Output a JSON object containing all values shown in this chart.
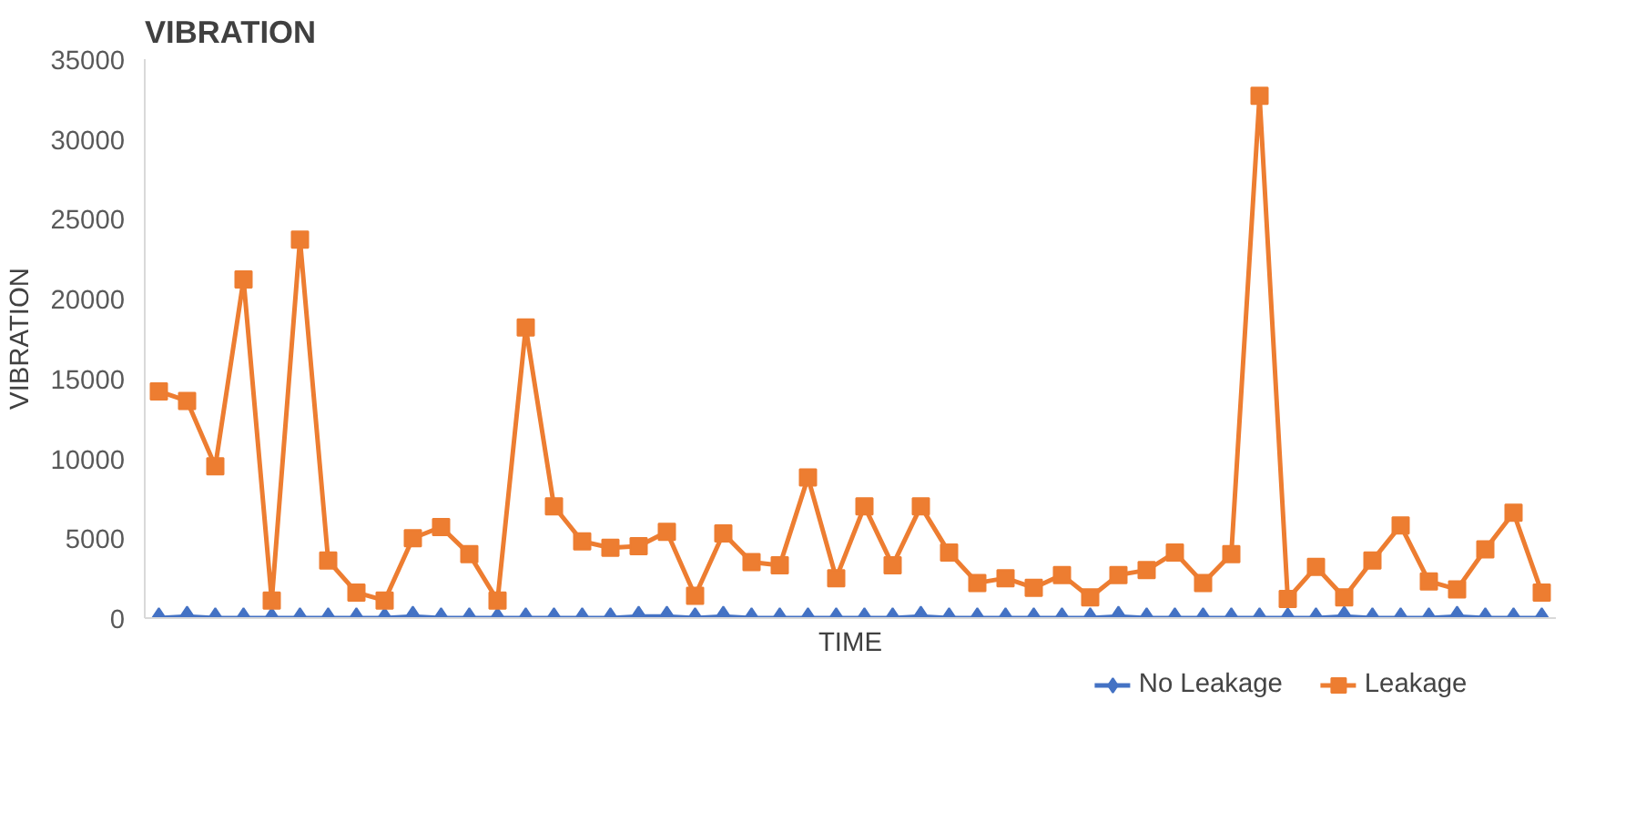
{
  "chart_data": {
    "type": "line",
    "title": "VIBRATION",
    "xlabel": "TIME",
    "ylabel": "VIBRATION",
    "categories": [
      null,
      null,
      null,
      null,
      null,
      null,
      null,
      null,
      null,
      null,
      null,
      null,
      null,
      null,
      null,
      null,
      null,
      null,
      null,
      null,
      null,
      null,
      null,
      null,
      null,
      null,
      null,
      null,
      null,
      null,
      null,
      null,
      null,
      null,
      null,
      null,
      null,
      null,
      null,
      null,
      null,
      null,
      null,
      null,
      null,
      null,
      null,
      null,
      null,
      null
    ],
    "series": [
      {
        "name": "No Leakage",
        "color": "#4472c4",
        "marker": "diamond",
        "values": [
          0,
          100,
          0,
          0,
          0,
          0,
          0,
          0,
          0,
          100,
          0,
          0,
          0,
          0,
          0,
          0,
          0,
          100,
          100,
          0,
          100,
          0,
          0,
          0,
          0,
          0,
          0,
          100,
          0,
          0,
          0,
          0,
          0,
          0,
          100,
          0,
          0,
          0,
          0,
          0,
          0,
          0,
          100,
          0,
          0,
          0,
          100,
          0,
          0,
          0
        ]
      },
      {
        "name": "Leakage",
        "color": "#ed7d31",
        "marker": "square",
        "values": [
          14200,
          13600,
          9500,
          21200,
          1100,
          23700,
          3600,
          1600,
          1100,
          5000,
          5700,
          4000,
          1100,
          18200,
          7000,
          4800,
          4400,
          4500,
          5400,
          1400,
          5300,
          3500,
          3300,
          8800,
          2500,
          7000,
          3300,
          7000,
          4100,
          2200,
          2500,
          1900,
          2700,
          1300,
          2700,
          3000,
          4100,
          2200,
          4000,
          32700,
          1200,
          3200,
          1300,
          3600,
          5800,
          2300,
          1800,
          4300,
          6600,
          1600
        ]
      }
    ],
    "ylim": [
      0,
      35000
    ],
    "yticks": [
      0,
      5000,
      10000,
      15000,
      20000,
      25000,
      30000,
      35000
    ],
    "grid": false,
    "legend": "bottom right",
    "line_style": "solid"
  }
}
